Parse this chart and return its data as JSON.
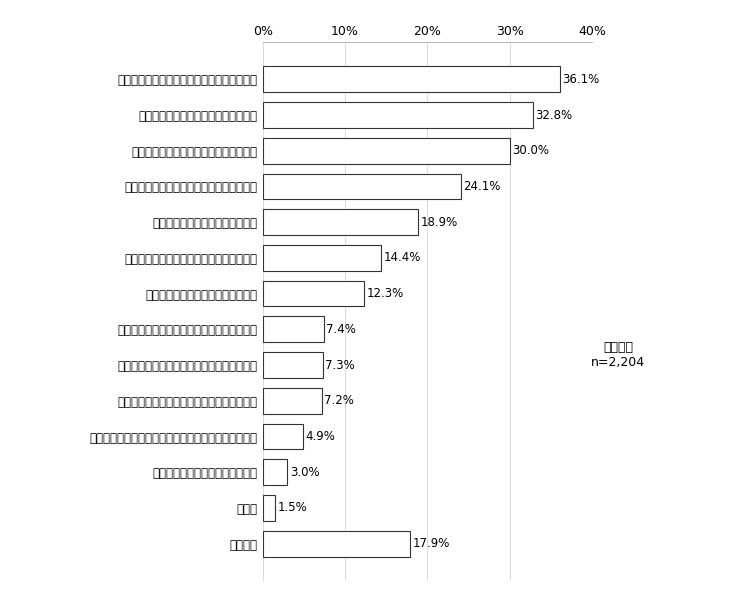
{
  "categories": [
    "自然災害や防犯など防災・防犯に関する情報",
    "名所やイベントなど観光に関する情報",
    "医療や介護など健康・福祉に関する情報",
    "住まいや消費生活など暮らしに関する情報",
    "プレゼントやクーポンなどの情報",
    "政策や行政計画など県政全般に関する情報",
    "子育てや学校など教育に関する情報",
    "都市計画や道路などまちづくりに関する情報",
    "自然保護や廃棄物処理など環境に関する情報",
    "農産物や就農移住など、農林業に関する情報",
    "就業支援や企業支援など、しごと・産業に関する情報",
    "入札や各種行政手続に関する情報",
    "その他",
    "特にない"
  ],
  "values": [
    36.1,
    32.8,
    30.0,
    24.1,
    18.9,
    14.4,
    12.3,
    7.4,
    7.3,
    7.2,
    4.9,
    3.0,
    1.5,
    17.9
  ],
  "bar_color": "#ffffff",
  "bar_edge_color": "#333333",
  "value_color": "#000000",
  "xlim": [
    0,
    40
  ],
  "xticks": [
    0,
    10,
    20,
    30,
    40
  ],
  "xticklabels": [
    "0%",
    "10%",
    "20%",
    "30%",
    "40%"
  ],
  "annotation_label": "今回調査\nn=2,204",
  "figure_width": 7.4,
  "figure_height": 5.99,
  "dpi": 100,
  "bar_height": 0.72,
  "label_fontsize": 8.5,
  "tick_fontsize": 9.0,
  "annot_fontsize": 9.0
}
